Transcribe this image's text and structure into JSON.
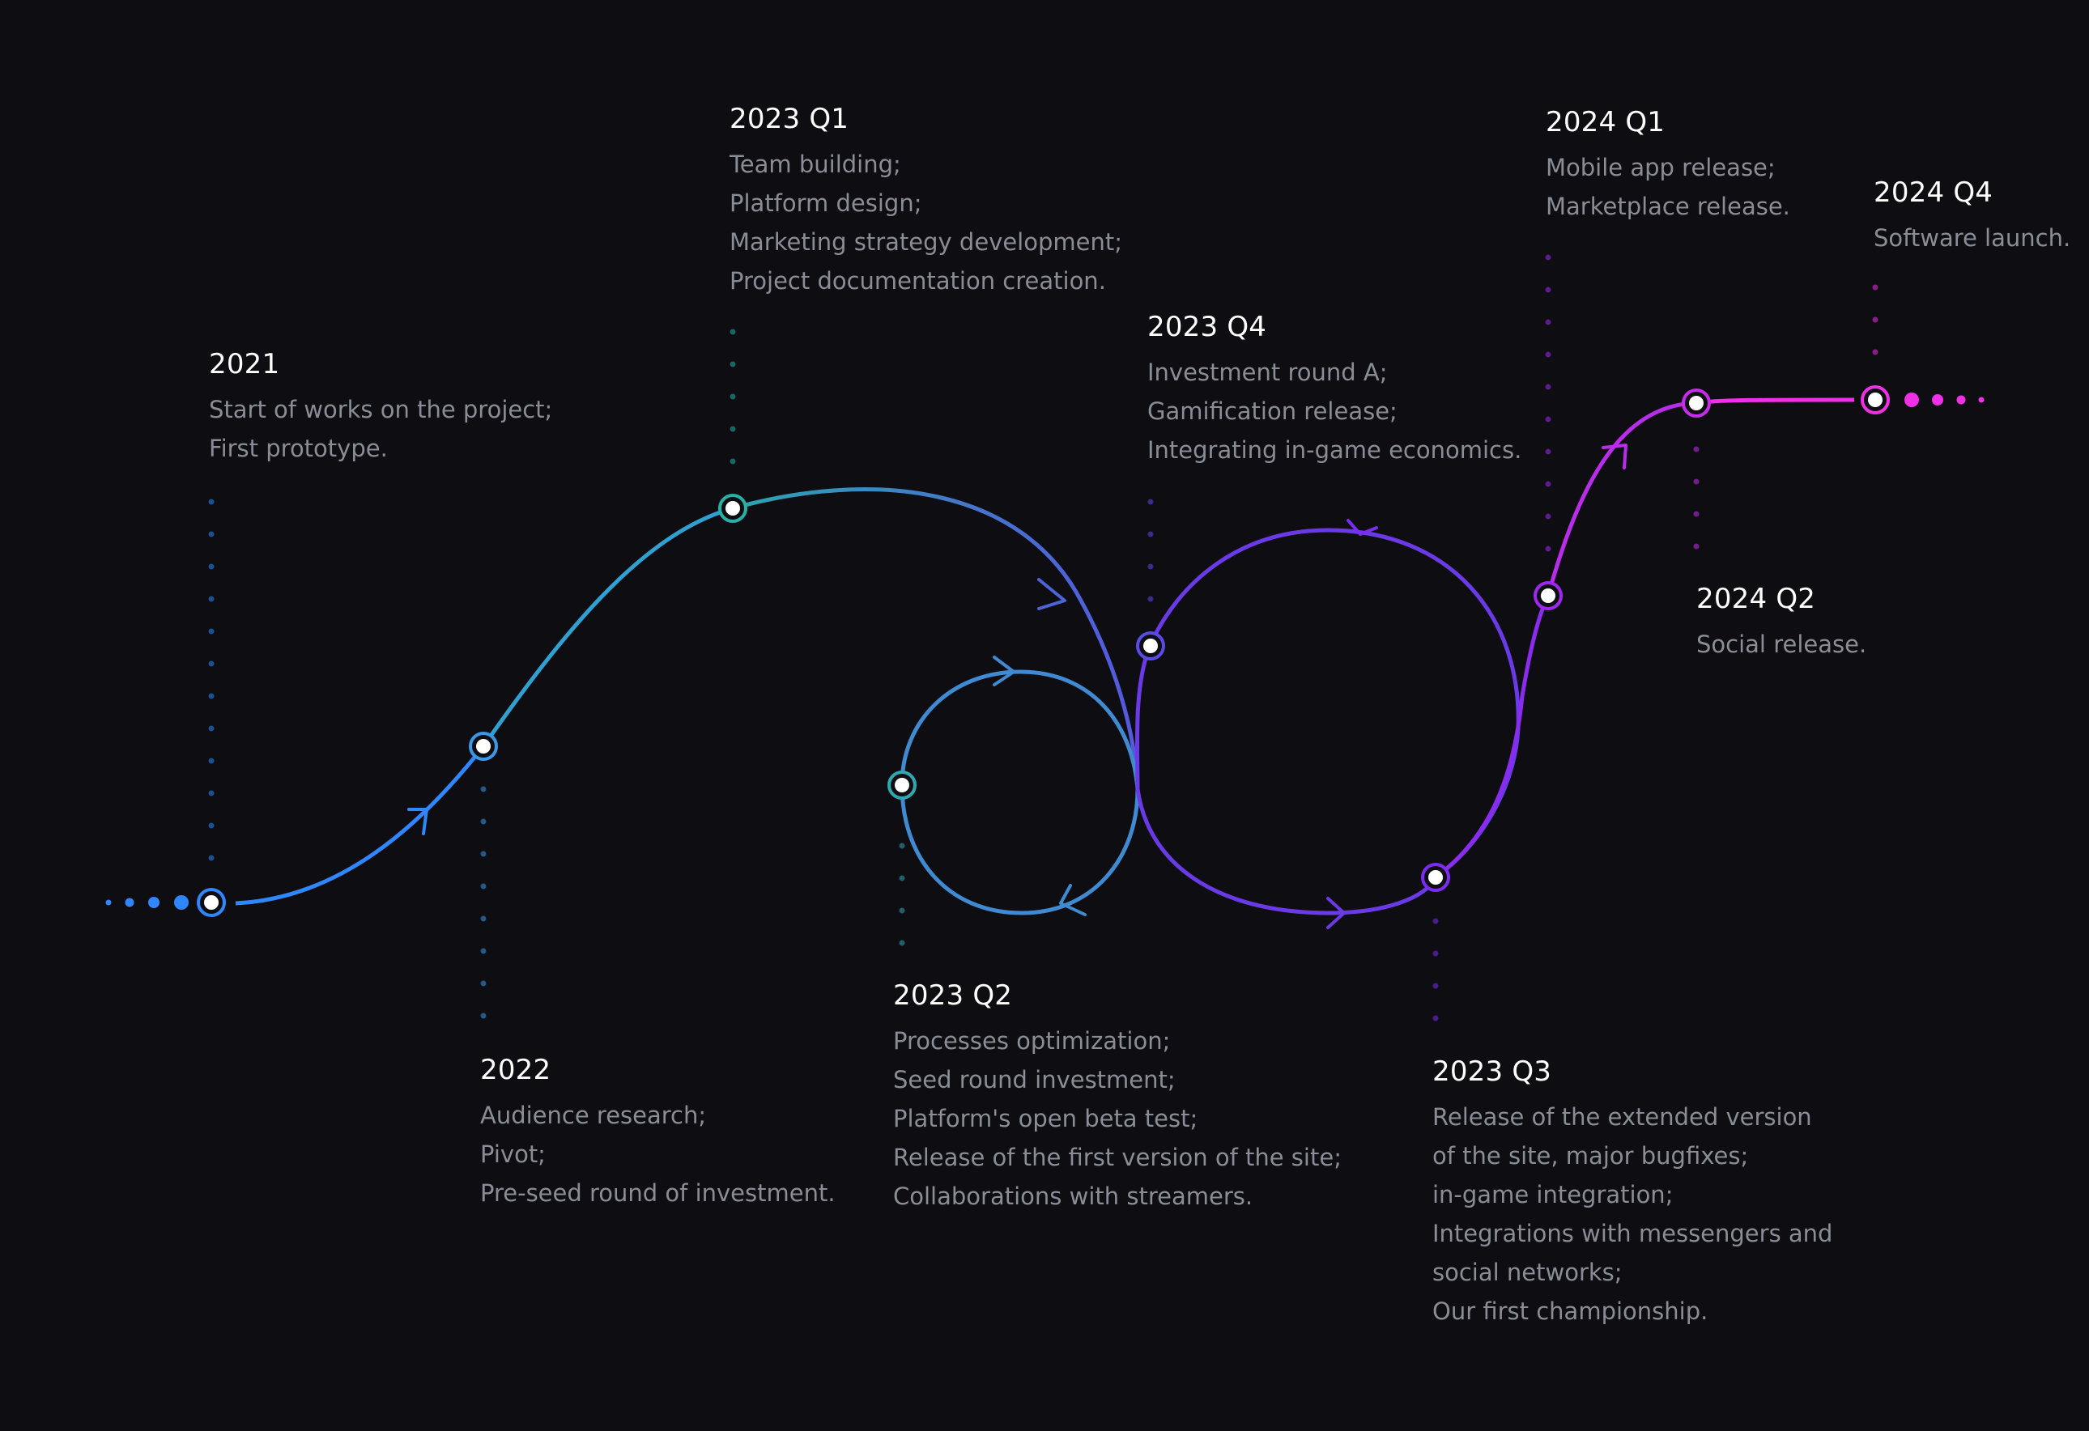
{
  "colors": {
    "background": "#0d0d12",
    "start": "#2f86ff",
    "teal": "#27b0a6",
    "indigo": "#4d63d8",
    "violet": "#7b2cf0",
    "magenta": "#f030e6",
    "title_text": "#ffffff",
    "body_text": "#8c8c96"
  },
  "milestones": [
    {
      "title": "2021",
      "color": "#2f86ff",
      "items": [
        "Start of works on the project;",
        "First prototype."
      ]
    },
    {
      "title": "2022",
      "color": "#3a98e6",
      "items": [
        "Audience research;",
        "Pivot;",
        "Pre-seed round of investment."
      ]
    },
    {
      "title": "2023 Q1",
      "color": "#27b0a6",
      "items": [
        "Team building;",
        "Platform design;",
        "Marketing strategy development;",
        "Project documentation creation."
      ]
    },
    {
      "title": "2023 Q2",
      "color": "#30a8b0",
      "items": [
        "Processes optimization;",
        "Seed round investment;",
        "Platform's open beta test;",
        "Release of the first version of the site;",
        "Collaborations with streamers."
      ]
    },
    {
      "title": "2023 Q4",
      "color": "#5a4ae6",
      "items": [
        "Investment round A;",
        "Gamification release;",
        "Integrating in-game economics."
      ]
    },
    {
      "title": "2023 Q3",
      "color": "#7b2cf0",
      "items": [
        "Release of the extended version",
        "of the site, major bugfixes;",
        "in-game integration;",
        "Integrations with messengers and",
        "social networks;",
        "Our first championship."
      ]
    },
    {
      "title": "2024 Q1",
      "color": "#9f28f0",
      "items": [
        "Mobile app release;",
        "Marketplace release."
      ]
    },
    {
      "title": "2024 Q2",
      "color": "#c62cea",
      "items": [
        "Social release."
      ]
    },
    {
      "title": "2024 Q4",
      "color": "#f030e6",
      "items": [
        "Software launch."
      ]
    }
  ]
}
